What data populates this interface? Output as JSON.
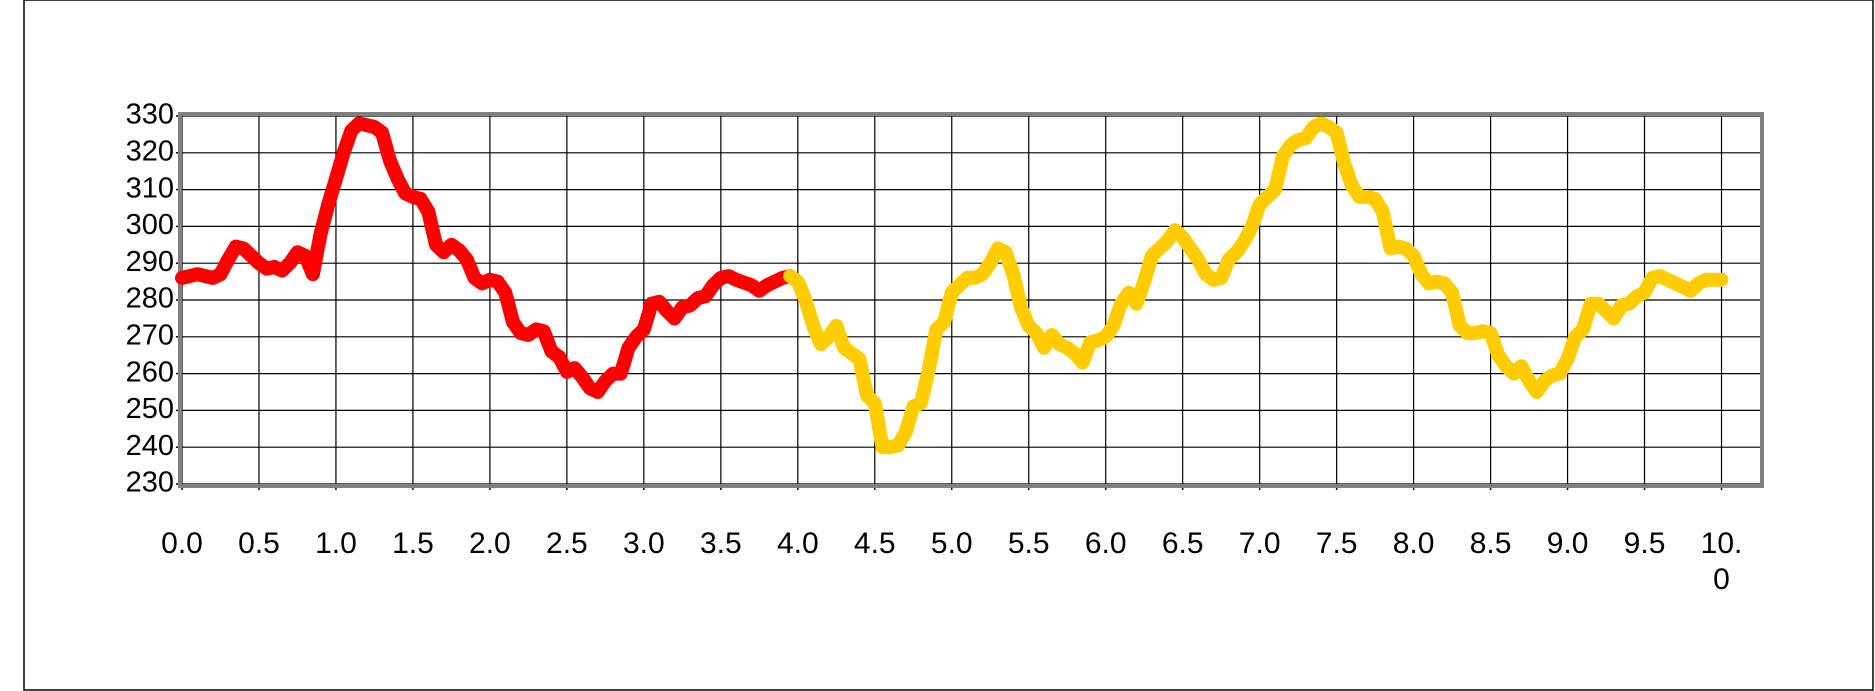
{
  "chart_data": {
    "type": "line",
    "xlim": [
      0,
      10.25
    ],
    "ylim": [
      230,
      330
    ],
    "xticks": [
      {
        "value": 0,
        "label": "0.0"
      },
      {
        "value": 0.5,
        "label": "0.5"
      },
      {
        "value": 1,
        "label": "1.0"
      },
      {
        "value": 1.5,
        "label": "1.5"
      },
      {
        "value": 2,
        "label": "2.0"
      },
      {
        "value": 2.5,
        "label": "2.5"
      },
      {
        "value": 3,
        "label": "3.0"
      },
      {
        "value": 3.5,
        "label": "3.5"
      },
      {
        "value": 4,
        "label": "4.0"
      },
      {
        "value": 4.5,
        "label": "4.5"
      },
      {
        "value": 5,
        "label": "5.0"
      },
      {
        "value": 5.5,
        "label": "5.5"
      },
      {
        "value": 6,
        "label": "6.0"
      },
      {
        "value": 6.5,
        "label": "6.5"
      },
      {
        "value": 7,
        "label": "7.0"
      },
      {
        "value": 7.5,
        "label": "7.5"
      },
      {
        "value": 8,
        "label": "8.0"
      },
      {
        "value": 8.5,
        "label": "8.5"
      },
      {
        "value": 9,
        "label": "9.0"
      },
      {
        "value": 9.5,
        "label": "9.5"
      },
      {
        "value": 10,
        "label": "10.0"
      }
    ],
    "yticks": [
      230,
      240,
      250,
      260,
      270,
      280,
      290,
      300,
      310,
      320,
      330
    ],
    "grid": true,
    "series": [
      {
        "color": "#ff0000",
        "x": [
          0,
          0.1,
          0.2,
          0.25,
          0.3,
          0.35,
          0.4,
          0.45,
          0.5,
          0.55,
          0.6,
          0.65,
          0.7,
          0.75,
          0.8,
          0.85,
          0.9,
          0.95,
          1.0,
          1.05,
          1.1,
          1.15,
          1.2,
          1.25,
          1.3,
          1.35,
          1.4,
          1.45,
          1.5,
          1.55,
          1.6,
          1.65,
          1.7,
          1.75,
          1.8,
          1.85,
          1.9,
          1.95,
          2.0,
          2.05,
          2.1,
          2.15,
          2.2,
          2.25,
          2.3,
          2.35,
          2.4,
          2.45,
          2.5,
          2.55,
          2.6,
          2.65,
          2.7,
          2.75,
          2.8,
          2.85,
          2.9,
          2.95,
          3.0,
          3.05,
          3.1,
          3.15,
          3.2,
          3.25,
          3.3,
          3.35,
          3.4,
          3.45,
          3.5,
          3.55,
          3.6,
          3.7,
          3.75,
          3.8,
          3.9,
          3.95
        ],
        "values": [
          286,
          287,
          286,
          287,
          291,
          294.5,
          294,
          292,
          290,
          288.5,
          289,
          288,
          290,
          293,
          292,
          287,
          298,
          306,
          313,
          320,
          326,
          328,
          327.5,
          327,
          325.5,
          318,
          313,
          309,
          308,
          307.5,
          304,
          295,
          293,
          295,
          293.5,
          291,
          286,
          284.5,
          285.5,
          285,
          282,
          274,
          271,
          270.5,
          272,
          271.5,
          266,
          264.5,
          260.5,
          261.5,
          259,
          256,
          255,
          258,
          260,
          260,
          267,
          270,
          272,
          279,
          279.5,
          277,
          275,
          278,
          278.5,
          280.5,
          281,
          284,
          286,
          286.5,
          285.5,
          284,
          282.5,
          284,
          286,
          286.5
        ]
      },
      {
        "color": "#ffcc00",
        "x": [
          3.95,
          4.0,
          4.05,
          4.1,
          4.15,
          4.2,
          4.25,
          4.3,
          4.35,
          4.4,
          4.45,
          4.5,
          4.55,
          4.6,
          4.65,
          4.7,
          4.75,
          4.8,
          4.85,
          4.9,
          4.95,
          5.0,
          5.05,
          5.1,
          5.15,
          5.2,
          5.25,
          5.3,
          5.35,
          5.4,
          5.45,
          5.5,
          5.55,
          5.6,
          5.65,
          5.7,
          5.75,
          5.8,
          5.85,
          5.9,
          5.95,
          6.0,
          6.05,
          6.1,
          6.15,
          6.2,
          6.25,
          6.3,
          6.35,
          6.4,
          6.45,
          6.5,
          6.55,
          6.6,
          6.65,
          6.7,
          6.75,
          6.8,
          6.85,
          6.9,
          6.95,
          7.0,
          7.05,
          7.1,
          7.15,
          7.2,
          7.25,
          7.3,
          7.35,
          7.4,
          7.45,
          7.5,
          7.55,
          7.6,
          7.65,
          7.7,
          7.75,
          7.8,
          7.85,
          7.9,
          7.95,
          8.0,
          8.05,
          8.1,
          8.15,
          8.2,
          8.25,
          8.3,
          8.35,
          8.4,
          8.45,
          8.5,
          8.55,
          8.6,
          8.65,
          8.7,
          8.75,
          8.8,
          8.85,
          8.9,
          8.95,
          9.0,
          9.05,
          9.1,
          9.15,
          9.2,
          9.25,
          9.3,
          9.35,
          9.4,
          9.45,
          9.5,
          9.55,
          9.6,
          9.65,
          9.7,
          9.75,
          9.8,
          9.85,
          9.9,
          9.95,
          10.0
        ],
        "values": [
          286.5,
          285,
          280,
          273,
          268,
          270,
          273,
          267,
          265.5,
          264,
          254,
          252,
          240,
          240,
          240.5,
          244,
          251,
          252,
          261,
          272,
          274,
          282,
          284,
          286,
          286,
          287,
          290,
          294,
          293,
          287,
          278,
          273,
          271,
          267,
          270.5,
          268,
          267,
          265.5,
          263,
          268.5,
          269,
          270,
          273,
          279,
          282,
          279,
          285,
          292,
          294,
          296,
          299,
          297,
          294,
          291,
          287,
          285.5,
          286,
          291,
          293,
          296,
          300,
          306,
          308,
          310,
          319,
          322,
          323.5,
          324,
          327,
          328,
          327,
          325.5,
          317,
          311,
          308,
          308,
          307.5,
          304,
          294,
          294.5,
          294,
          292,
          287,
          284.5,
          285,
          284.5,
          282,
          273,
          271,
          271,
          271.5,
          271,
          265,
          262,
          260,
          262,
          258,
          255,
          258,
          259.5,
          260,
          264,
          270,
          272,
          279,
          279,
          277,
          275,
          278.5,
          279,
          281,
          282,
          286,
          286.5,
          285.5,
          284.5,
          283.5,
          282.5,
          284.5,
          285.5,
          285.5,
          285.5
        ]
      }
    ]
  }
}
